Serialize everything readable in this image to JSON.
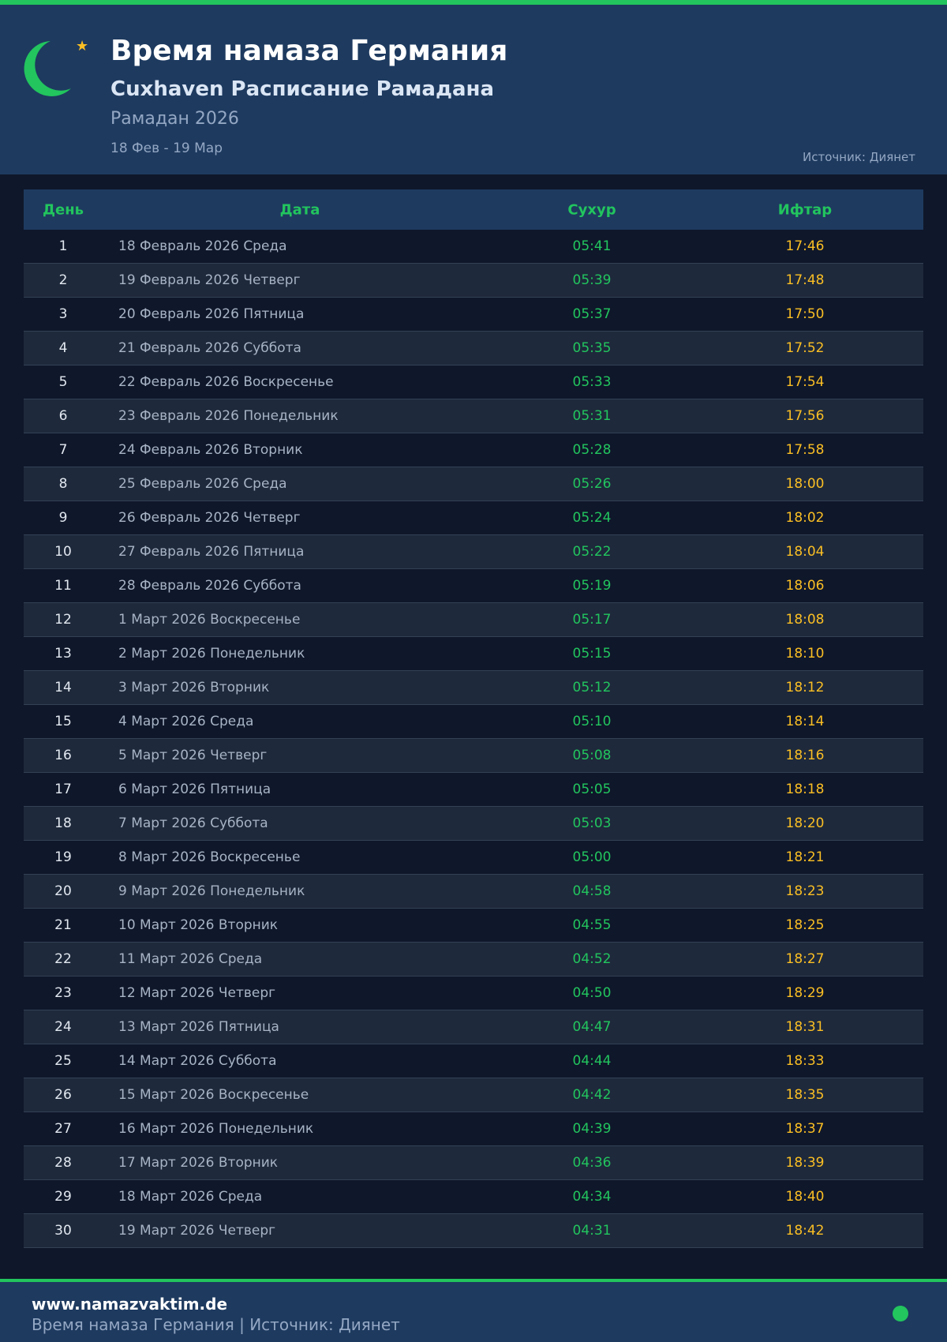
{
  "header": {
    "title": "Время намаза Германия",
    "subtitle": "Cuxhaven Расписание Рамадана",
    "year": "Рамадан 2026",
    "range": "18 Фев - 19 Мар",
    "source": "Источник: Диянет"
  },
  "colors": {
    "accent": "#22c55e",
    "iftar": "#fbbf24",
    "header_bg": "#1e3a5f",
    "bg": "#0f172a"
  },
  "table": {
    "columns": [
      "День",
      "Дата",
      "Сухур",
      "Ифтар"
    ],
    "rows": [
      [
        "1",
        "18 Февраль 2026 Среда",
        "05:41",
        "17:46"
      ],
      [
        "2",
        "19 Февраль 2026 Четверг",
        "05:39",
        "17:48"
      ],
      [
        "3",
        "20 Февраль 2026 Пятница",
        "05:37",
        "17:50"
      ],
      [
        "4",
        "21 Февраль 2026 Суббота",
        "05:35",
        "17:52"
      ],
      [
        "5",
        "22 Февраль 2026 Воскресенье",
        "05:33",
        "17:54"
      ],
      [
        "6",
        "23 Февраль 2026 Понедельник",
        "05:31",
        "17:56"
      ],
      [
        "7",
        "24 Февраль 2026 Вторник",
        "05:28",
        "17:58"
      ],
      [
        "8",
        "25 Февраль 2026 Среда",
        "05:26",
        "18:00"
      ],
      [
        "9",
        "26 Февраль 2026 Четверг",
        "05:24",
        "18:02"
      ],
      [
        "10",
        "27 Февраль 2026 Пятница",
        "05:22",
        "18:04"
      ],
      [
        "11",
        "28 Февраль 2026 Суббота",
        "05:19",
        "18:06"
      ],
      [
        "12",
        "1 Март 2026 Воскресенье",
        "05:17",
        "18:08"
      ],
      [
        "13",
        "2 Март 2026 Понедельник",
        "05:15",
        "18:10"
      ],
      [
        "14",
        "3 Март 2026 Вторник",
        "05:12",
        "18:12"
      ],
      [
        "15",
        "4 Март 2026 Среда",
        "05:10",
        "18:14"
      ],
      [
        "16",
        "5 Март 2026 Четверг",
        "05:08",
        "18:16"
      ],
      [
        "17",
        "6 Март 2026 Пятница",
        "05:05",
        "18:18"
      ],
      [
        "18",
        "7 Март 2026 Суббота",
        "05:03",
        "18:20"
      ],
      [
        "19",
        "8 Март 2026 Воскресенье",
        "05:00",
        "18:21"
      ],
      [
        "20",
        "9 Март 2026 Понедельник",
        "04:58",
        "18:23"
      ],
      [
        "21",
        "10 Март 2026 Вторник",
        "04:55",
        "18:25"
      ],
      [
        "22",
        "11 Март 2026 Среда",
        "04:52",
        "18:27"
      ],
      [
        "23",
        "12 Март 2026 Четверг",
        "04:50",
        "18:29"
      ],
      [
        "24",
        "13 Март 2026 Пятница",
        "04:47",
        "18:31"
      ],
      [
        "25",
        "14 Март 2026 Суббота",
        "04:44",
        "18:33"
      ],
      [
        "26",
        "15 Март 2026 Воскресенье",
        "04:42",
        "18:35"
      ],
      [
        "27",
        "16 Март 2026 Понедельник",
        "04:39",
        "18:37"
      ],
      [
        "28",
        "17 Март 2026 Вторник",
        "04:36",
        "18:39"
      ],
      [
        "29",
        "18 Март 2026 Среда",
        "04:34",
        "18:40"
      ],
      [
        "30",
        "19 Март 2026 Четверг",
        "04:31",
        "18:42"
      ]
    ]
  },
  "footer": {
    "site": "www.namazvaktim.de",
    "tagline": "Время намаза Германия | Источник: Диянет"
  }
}
